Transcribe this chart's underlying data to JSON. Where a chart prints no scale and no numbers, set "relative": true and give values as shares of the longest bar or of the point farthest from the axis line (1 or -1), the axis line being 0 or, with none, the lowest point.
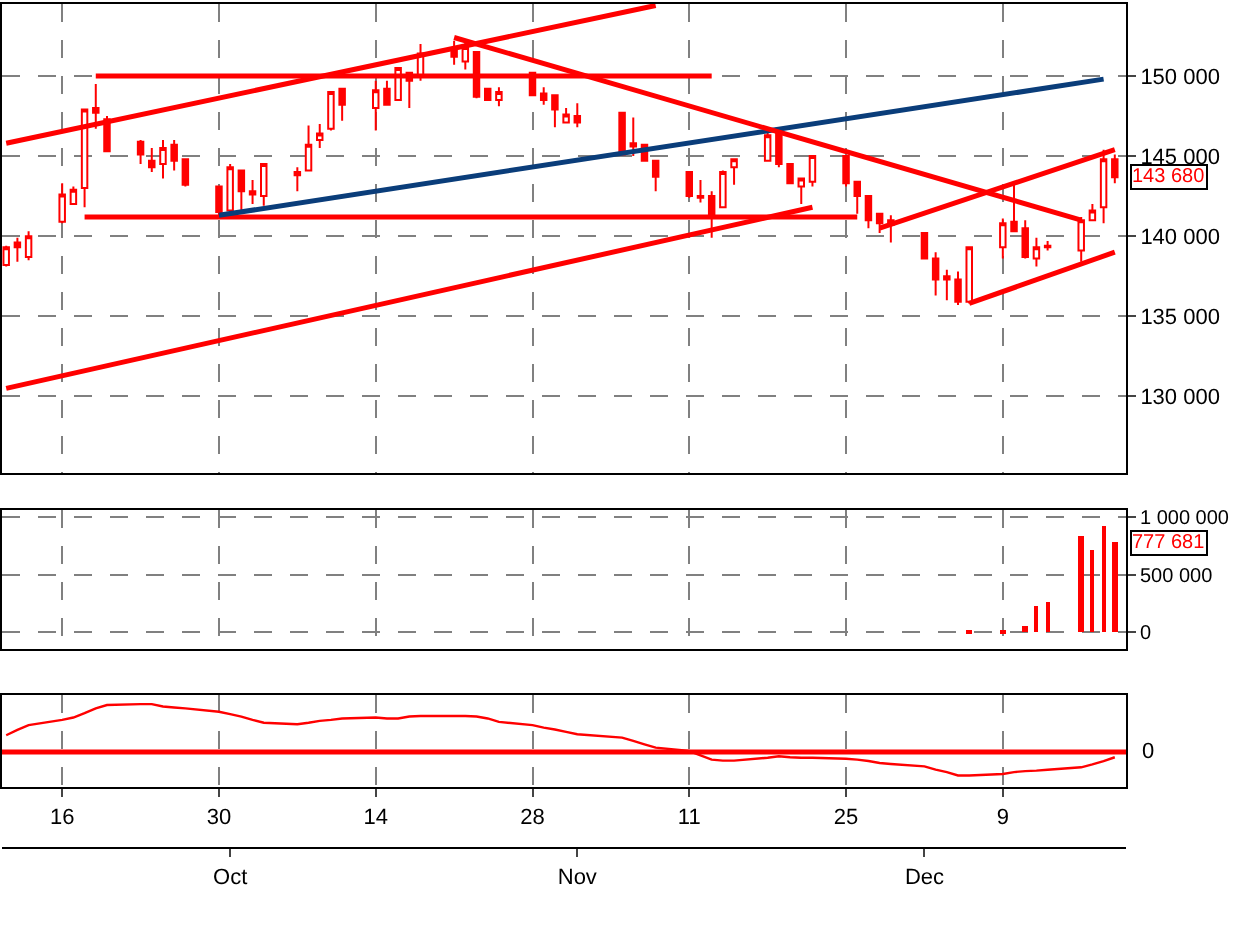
{
  "chart_data": [
    {
      "type": "candlestick",
      "color": "#ff0000",
      "tick_labels": "y",
      "grid": true,
      "x": [
        "--09-11",
        "--09-12",
        "--09-13",
        "--09-16",
        "--09-17",
        "--09-18",
        "--09-19",
        "--09-20",
        "--09-23",
        "--09-24",
        "--09-25",
        "--09-26",
        "--09-27",
        "--09-30",
        "--10-01",
        "--10-02",
        "--10-03",
        "--10-04",
        "--10-07",
        "--10-08",
        "--10-09",
        "--10-10",
        "--10-11",
        "--10-14",
        "--10-15",
        "--10-16",
        "--10-17",
        "--10-18",
        "--10-21",
        "--10-22",
        "--10-23",
        "--10-24",
        "--10-25",
        "--10-28",
        "--10-29",
        "--10-30",
        "--10-31",
        "--11-01",
        "--11-05",
        "--11-06",
        "--11-07",
        "--11-08",
        "--11-11",
        "--11-12",
        "--11-13",
        "--11-14",
        "--11-15",
        "--11-18",
        "--11-19",
        "--11-20",
        "--11-21",
        "--11-22",
        "--11-25",
        "--11-26",
        "--11-27",
        "--11-28",
        "--11-29",
        "--12-02",
        "--12-03",
        "--12-04",
        "--12-05",
        "--12-06",
        "--12-09",
        "--12-10",
        "--12-11",
        "--12-12",
        "--12-13",
        "--12-16",
        "--12-17",
        "--12-18",
        "--12-19"
      ],
      "ohlc": [
        [
          138200,
          139400,
          138100,
          139300
        ],
        [
          139600,
          139900,
          138400,
          139300
        ],
        [
          138700,
          140300,
          138500,
          140000
        ],
        [
          140900,
          143300,
          140800,
          142600
        ],
        [
          142000,
          143100,
          142000,
          142900
        ],
        [
          143000,
          147900,
          141800,
          147900
        ],
        [
          148000,
          149500,
          146700,
          147700
        ],
        [
          147300,
          147500,
          145300,
          145300
        ],
        [
          145900,
          146000,
          144500,
          145100
        ],
        [
          144700,
          145500,
          144000,
          144300
        ],
        [
          144500,
          146000,
          143600,
          145500
        ],
        [
          145700,
          146000,
          144100,
          144700
        ],
        [
          144800,
          144800,
          143100,
          143200
        ],
        [
          143100,
          143100,
          141300,
          141500
        ],
        [
          141600,
          144500,
          141300,
          144300
        ],
        [
          144100,
          144100,
          141600,
          142800
        ],
        [
          142800,
          143500,
          142000,
          142600
        ],
        [
          142500,
          144500,
          141900,
          144500
        ],
        [
          144000,
          144300,
          142800,
          143800
        ],
        [
          144100,
          146900,
          144100,
          145700
        ],
        [
          146000,
          147000,
          145500,
          146400
        ],
        [
          146700,
          149000,
          146600,
          149000
        ],
        [
          149200,
          149200,
          147200,
          148200
        ],
        [
          148000,
          149700,
          146600,
          149100
        ],
        [
          149200,
          149700,
          148200,
          148200
        ],
        [
          148500,
          150500,
          148500,
          150500
        ],
        [
          150200,
          150200,
          148000,
          149700
        ],
        [
          150000,
          152000,
          149700,
          151400
        ],
        [
          151700,
          152200,
          150700,
          151200
        ],
        [
          150900,
          152200,
          150400,
          151800
        ],
        [
          151500,
          151500,
          148600,
          148700
        ],
        [
          149200,
          149200,
          148500,
          148500
        ],
        [
          148500,
          149300,
          148100,
          149000
        ],
        [
          150200,
          150200,
          148800,
          148800
        ],
        [
          148900,
          149300,
          148200,
          148500
        ],
        [
          148800,
          148800,
          146800,
          147900
        ],
        [
          147100,
          148000,
          147100,
          147600
        ],
        [
          147500,
          148300,
          146800,
          147100
        ],
        [
          147700,
          147700,
          145100,
          145100
        ],
        [
          145800,
          147400,
          145000,
          145600
        ],
        [
          145700,
          145700,
          144700,
          144700
        ],
        [
          144700,
          144700,
          142800,
          143700
        ],
        [
          144000,
          144000,
          142400,
          142500
        ],
        [
          142500,
          143500,
          142100,
          142400
        ],
        [
          142500,
          142800,
          139900,
          141200
        ],
        [
          141800,
          144100,
          141800,
          144000
        ],
        [
          144300,
          144800,
          143200,
          144800
        ],
        [
          144700,
          146600,
          144700,
          146300
        ],
        [
          146700,
          146700,
          144300,
          144500
        ],
        [
          144500,
          144500,
          143300,
          143300
        ],
        [
          143100,
          143600,
          142000,
          143600
        ],
        [
          143400,
          145000,
          143100,
          145000
        ],
        [
          145000,
          145000,
          143100,
          143300
        ],
        [
          143400,
          143400,
          141400,
          142500
        ],
        [
          142500,
          142500,
          140500,
          141000
        ],
        [
          141400,
          141400,
          140200,
          140800
        ],
        [
          141000,
          141300,
          139600,
          140700
        ],
        [
          140200,
          140200,
          138600,
          138600
        ],
        [
          138600,
          139000,
          136300,
          137300
        ],
        [
          137500,
          137900,
          136000,
          137300
        ],
        [
          137300,
          137800,
          135700,
          135900
        ],
        [
          135900,
          139300,
          135800,
          139300
        ],
        [
          139300,
          141100,
          138600,
          140800
        ],
        [
          140900,
          143200,
          140300,
          140300
        ],
        [
          140500,
          141000,
          138600,
          138700
        ],
        [
          138600,
          139900,
          138100,
          139300
        ],
        [
          139300,
          139700,
          139100,
          139400
        ],
        [
          139100,
          141200,
          138400,
          141000
        ],
        [
          141000,
          142000,
          141000,
          141600
        ],
        [
          141800,
          145400,
          140800,
          144800
        ],
        [
          144800,
          145100,
          143300,
          143680
        ]
      ],
      "series": [
        {
          "type": "line",
          "color": "#ff0000",
          "x": [
            "--09-11",
            "--11-08"
          ],
          "values": [
            145800,
            154400
          ]
        },
        {
          "type": "line",
          "color": "#ff0000",
          "x": [
            "--09-19",
            "--11-13"
          ],
          "values": [
            150000,
            150000
          ]
        },
        {
          "type": "line",
          "color": "#ff0000",
          "x": [
            "--09-18",
            "--11-26"
          ],
          "values": [
            141200,
            141200
          ]
        },
        {
          "type": "line",
          "color": "#ff0000",
          "x": [
            "--09-11",
            "--11-22"
          ],
          "values": [
            130500,
            141800
          ]
        },
        {
          "type": "line",
          "color": "#0a3d7a",
          "x": [
            "--09-30",
            "--12-18"
          ],
          "values": [
            141300,
            149800
          ]
        },
        {
          "type": "line",
          "color": "#ff0000",
          "x": [
            "--10-21",
            "--12-16"
          ],
          "values": [
            152400,
            141000
          ]
        },
        {
          "type": "line",
          "color": "#ff0000",
          "x": [
            "--11-28",
            "--12-19"
          ],
          "values": [
            140500,
            145400
          ]
        },
        {
          "type": "line",
          "color": "#ff0000",
          "x": [
            "--12-06",
            "--12-19"
          ],
          "values": [
            135800,
            139000
          ]
        }
      ],
      "xlim": [
        "--09-10T15:00",
        "--12-20"
      ],
      "xticks": [
        {
          "value": "--09-16",
          "label": null
        },
        {
          "value": "--09-30",
          "label": null
        },
        {
          "value": "--10-14",
          "label": null
        },
        {
          "value": "--10-28",
          "label": null
        },
        {
          "value": "--11-11",
          "label": null
        },
        {
          "value": "--11-25",
          "label": null
        },
        {
          "value": "--12-09",
          "label": null
        }
      ],
      "ylim": [
        125200,
        154500
      ],
      "yticks": [
        {
          "value": 130000,
          "label": "130 000"
        },
        {
          "value": 135000,
          "label": "135 000"
        },
        {
          "value": 140000,
          "label": "140 000"
        },
        {
          "value": 145000,
          "label": "145 000"
        },
        {
          "value": 150000,
          "label": "150 000"
        }
      ],
      "annotations": [
        "143 680"
      ]
    },
    {
      "type": "bar",
      "color": "#ff0000",
      "tick_labels": "y",
      "grid": true,
      "x": [
        "--12-06",
        "--12-09",
        "--12-11",
        "--12-12",
        "--12-13",
        "--12-16",
        "--12-17",
        "--12-18",
        "--12-19"
      ],
      "values": [
        10000,
        10000,
        60000,
        230000,
        260000,
        840000,
        710000,
        920000,
        777681
      ],
      "xlim": [
        "--09-10T15:00",
        "--12-20"
      ],
      "xticks": [
        {
          "value": "--09-16",
          "label": null
        },
        {
          "value": "--09-30",
          "label": null
        },
        {
          "value": "--10-14",
          "label": null
        },
        {
          "value": "--10-28",
          "label": null
        },
        {
          "value": "--11-11",
          "label": null
        },
        {
          "value": "--11-25",
          "label": null
        },
        {
          "value": "--12-09",
          "label": null
        }
      ],
      "ylim": [
        -144000,
        1063000
      ],
      "yticks": [
        0,
        {
          "value": 500000,
          "label": "500 000"
        },
        {
          "value": 1000000,
          "label": "1 000 000"
        }
      ],
      "annotations": [
        "777 681"
      ]
    },
    {
      "type": "line",
      "relative": true,
      "color": "#ff0000",
      "grid": "x",
      "x": [
        "--09-11",
        "--09-12",
        "--09-13",
        "--09-16",
        "--09-17",
        "--09-18",
        "--09-19",
        "--09-20",
        "--09-23",
        "--09-24",
        "--09-25",
        "--09-26",
        "--09-27",
        "--09-30",
        "--10-01",
        "--10-02",
        "--10-03",
        "--10-04",
        "--10-07",
        "--10-08",
        "--10-09",
        "--10-10",
        "--10-11",
        "--10-14",
        "--10-15",
        "--10-16",
        "--10-17",
        "--10-18",
        "--10-21",
        "--10-22",
        "--10-23",
        "--10-24",
        "--10-25",
        "--10-28",
        "--10-29",
        "--10-30",
        "--10-31",
        "--11-01",
        "--11-05",
        "--11-06",
        "--11-07",
        "--11-08",
        "--11-11",
        "--11-12",
        "--11-13",
        "--11-14",
        "--11-15",
        "--11-18",
        "--11-19",
        "--11-20",
        "--11-21",
        "--11-22",
        "--11-25",
        "--11-26",
        "--11-27",
        "--11-28",
        "--11-29",
        "--12-02",
        "--12-03",
        "--12-04",
        "--12-05",
        "--12-06",
        "--12-09",
        "--12-10",
        "--12-11",
        "--12-12",
        "--12-13",
        "--12-16",
        "--12-17",
        "--12-18",
        "--12-19"
      ],
      "values": [
        0.35,
        0.46,
        0.56,
        0.67,
        0.72,
        0.81,
        0.91,
        0.98,
        1,
        1,
        0.95,
        0.93,
        0.91,
        0.84,
        0.79,
        0.74,
        0.67,
        0.61,
        0.58,
        0.61,
        0.65,
        0.67,
        0.7,
        0.72,
        0.7,
        0.7,
        0.74,
        0.75,
        0.75,
        0.75,
        0.74,
        0.7,
        0.63,
        0.56,
        0.51,
        0.47,
        0.42,
        0.37,
        0.3,
        0.23,
        0.16,
        0.09,
        0.02,
        -0.07,
        -0.16,
        -0.18,
        -0.18,
        -0.12,
        -0.09,
        -0.11,
        -0.12,
        -0.12,
        -0.14,
        -0.16,
        -0.19,
        -0.23,
        -0.25,
        -0.3,
        -0.37,
        -0.42,
        -0.49,
        -0.49,
        -0.46,
        -0.42,
        -0.4,
        -0.39,
        -0.37,
        -0.32,
        -0.26,
        -0.19,
        -0.11
      ],
      "ref_lines": [
        {
          "axis": "y",
          "value": 0,
          "label": "0",
          "color": "#ff0000"
        }
      ],
      "xlim": [
        "--09-10T15:00",
        "--12-20"
      ],
      "xticks": [
        {
          "value": "--09-16",
          "label": "16"
        },
        {
          "value": "--09-30",
          "label": "30"
        },
        {
          "value": "--10-14",
          "label": "14"
        },
        {
          "value": "--10-28",
          "label": "28"
        },
        {
          "value": "--11-11",
          "label": "11"
        },
        {
          "value": "--11-25",
          "label": "25"
        },
        {
          "value": "--12-09",
          "label": "9"
        }
      ],
      "x2lim": [
        "--09-10T15:00",
        "--12-20"
      ],
      "x2ticks": [
        {
          "value": "--10-01",
          "label": "Oct"
        },
        {
          "value": "--11-01",
          "label": "Nov"
        },
        {
          "value": "--12-02",
          "label": "Dec"
        }
      ]
    }
  ]
}
